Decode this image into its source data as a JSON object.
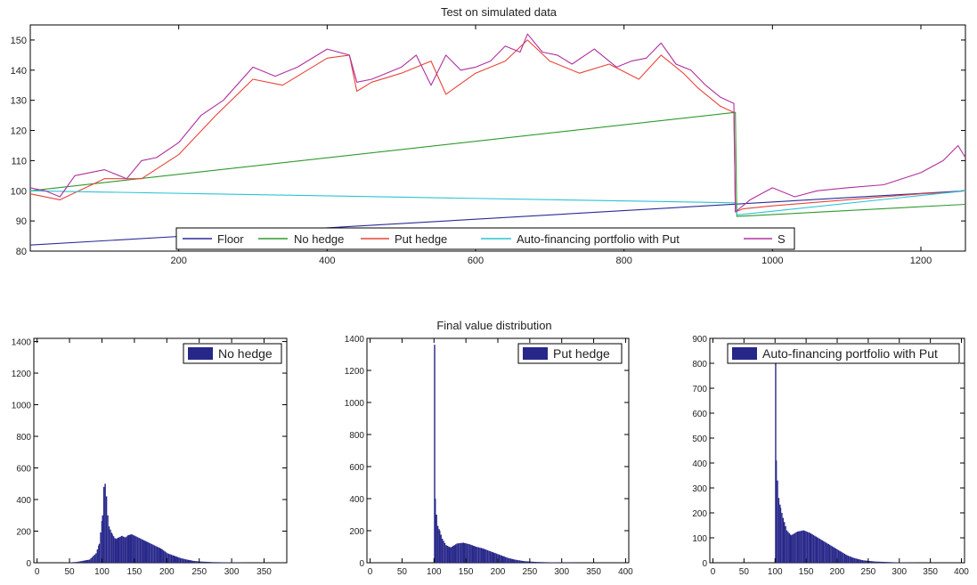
{
  "chart_data": [
    {
      "type": "line",
      "title": "Test on simulated data",
      "xlim": [
        0,
        1260
      ],
      "ylim": [
        80,
        155
      ],
      "xticks": [
        200,
        400,
        600,
        800,
        1000,
        1200
      ],
      "yticks": [
        80,
        90,
        100,
        110,
        120,
        130,
        140,
        150
      ],
      "legend_position": "bottom-center",
      "series": [
        {
          "name": "Floor",
          "color": "#2b2b9a",
          "x": [
            0,
            1260
          ],
          "y": [
            82,
            100
          ]
        },
        {
          "name": "No hedge",
          "color": "#2e9a2e",
          "x": [
            0,
            950,
            952,
            1260
          ],
          "y": [
            100,
            126,
            91.5,
            95.5
          ]
        },
        {
          "name": "Put hedge",
          "color": "#e8443a",
          "x": [
            0,
            40,
            100,
            150,
            200,
            250,
            300,
            340,
            400,
            430,
            440,
            460,
            500,
            540,
            560,
            600,
            640,
            670,
            700,
            740,
            780,
            820,
            850,
            880,
            900,
            930,
            948,
            950,
            960,
            1000,
            1050,
            1100,
            1150,
            1200,
            1240,
            1260
          ],
          "y": [
            99,
            97,
            104,
            104,
            112,
            125,
            137,
            135,
            144,
            145,
            133,
            136,
            139,
            143,
            132,
            139,
            143,
            150,
            143,
            139,
            142,
            137,
            145,
            139,
            134,
            128,
            126,
            93,
            94,
            95,
            96,
            97,
            98,
            99,
            99.5,
            100
          ]
        },
        {
          "name": "Auto-financing portfolio with Put",
          "color": "#2bc4d4",
          "x": [
            0,
            950,
            952,
            1260
          ],
          "y": [
            100,
            96,
            92,
            100
          ]
        },
        {
          "name": "S",
          "color": "#b0309f",
          "x": [
            0,
            20,
            40,
            60,
            80,
            100,
            130,
            150,
            170,
            200,
            230,
            260,
            300,
            330,
            360,
            400,
            430,
            440,
            460,
            480,
            500,
            520,
            540,
            560,
            580,
            600,
            620,
            640,
            660,
            670,
            690,
            710,
            730,
            760,
            790,
            810,
            830,
            850,
            870,
            890,
            910,
            930,
            948,
            950,
            970,
            1000,
            1030,
            1060,
            1100,
            1150,
            1200,
            1230,
            1250,
            1260
          ],
          "y": [
            101,
            100,
            98,
            105,
            106,
            107,
            104,
            110,
            111,
            116,
            125,
            130,
            141,
            138,
            141,
            147,
            145,
            136,
            137,
            139,
            141,
            145,
            135,
            145,
            140,
            141,
            143,
            148,
            146,
            152,
            146,
            145,
            142,
            147,
            141,
            143,
            144,
            149,
            142,
            140,
            135,
            131,
            129,
            93,
            97,
            101,
            98,
            100,
            101,
            102,
            106,
            110,
            115,
            111
          ]
        }
      ]
    },
    {
      "type": "bar",
      "title": "Final value distribution",
      "legend": "No hedge",
      "color": "#27278a",
      "xlim": [
        -5,
        385
      ],
      "ylim": [
        0,
        1420
      ],
      "xticks": [
        0,
        50,
        100,
        150,
        200,
        250,
        300,
        350
      ],
      "yticks": [
        0,
        200,
        400,
        600,
        800,
        1000,
        1200,
        1400
      ],
      "x": [
        40,
        60,
        80,
        90,
        95,
        100,
        102,
        104,
        106,
        108,
        110,
        115,
        120,
        125,
        130,
        135,
        140,
        145,
        150,
        160,
        170,
        180,
        190,
        200,
        210,
        220,
        230,
        240,
        250,
        270,
        300,
        330
      ],
      "y": [
        0,
        5,
        20,
        60,
        120,
        300,
        480,
        500,
        420,
        300,
        230,
        180,
        150,
        160,
        170,
        160,
        175,
        180,
        170,
        150,
        130,
        110,
        90,
        60,
        45,
        30,
        20,
        12,
        8,
        4,
        2,
        0
      ]
    },
    {
      "type": "bar",
      "legend": "Put hedge",
      "color": "#27278a",
      "xlim": [
        -5,
        405
      ],
      "ylim": [
        0,
        1400
      ],
      "xticks": [
        0,
        50,
        100,
        150,
        200,
        250,
        300,
        350,
        400
      ],
      "yticks": [
        0,
        200,
        400,
        600,
        800,
        1000,
        1200,
        1400
      ],
      "x": [
        100,
        101,
        103,
        105,
        108,
        112,
        118,
        125,
        135,
        145,
        155,
        165,
        175,
        185,
        195,
        205,
        215,
        225,
        240,
        260,
        290,
        330
      ],
      "y": [
        1360,
        400,
        300,
        230,
        200,
        150,
        110,
        95,
        120,
        125,
        115,
        100,
        90,
        75,
        60,
        45,
        30,
        20,
        10,
        5,
        2,
        0
      ]
    },
    {
      "type": "bar",
      "legend": "Auto-financing portfolio with Put",
      "color": "#27278a",
      "xlim": [
        -5,
        405
      ],
      "ylim": [
        0,
        900
      ],
      "xticks": [
        0,
        50,
        100,
        150,
        200,
        250,
        300,
        350,
        400
      ],
      "yticks": [
        0,
        100,
        200,
        300,
        400,
        500,
        600,
        700,
        800,
        900
      ],
      "x": [
        100,
        101,
        103,
        105,
        108,
        112,
        118,
        125,
        135,
        145,
        155,
        165,
        175,
        185,
        195,
        205,
        215,
        225,
        240,
        260,
        290,
        330
      ],
      "y": [
        880,
        410,
        330,
        260,
        220,
        180,
        130,
        110,
        125,
        130,
        120,
        105,
        90,
        75,
        60,
        45,
        30,
        20,
        10,
        5,
        2,
        0
      ]
    }
  ]
}
